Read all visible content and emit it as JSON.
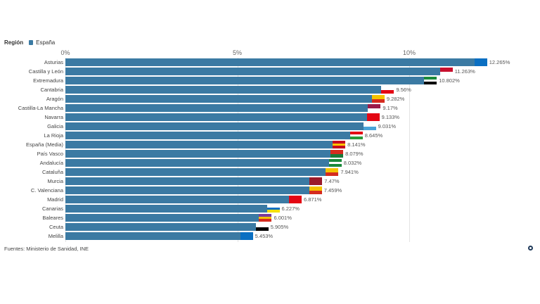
{
  "legend": {
    "title": "Región",
    "item": "España",
    "color": "#3b7aa3"
  },
  "chart_data": {
    "type": "bar",
    "orientation": "horizontal",
    "xlim": [
      0,
      12.5
    ],
    "ticks": [
      "0%",
      "5%",
      "10%"
    ],
    "tick_values": [
      0,
      5,
      10
    ],
    "categories": [
      "Asturias",
      "Castilla y León",
      "Extremadura",
      "Cantabria",
      "Aragón",
      "Castilla-La Mancha",
      "Navarra",
      "Galicia",
      "La Rioja",
      "España (Media)",
      "País Vasco",
      "Andalucía",
      "Cataluña",
      "Murcia",
      "C. Valenciana",
      "Madrid",
      "Canarias",
      "Baleares",
      "Ceuta",
      "Melilla"
    ],
    "values": [
      12.265,
      11.263,
      10.802,
      9.56,
      9.282,
      9.17,
      9.133,
      9.031,
      8.645,
      8.141,
      8.079,
      8.032,
      7.941,
      7.47,
      7.459,
      6.871,
      6.227,
      6.001,
      5.905,
      5.453
    ],
    "labels": [
      "12.265%",
      "11.263%",
      "10.802%",
      "9.56%",
      "9.282%",
      "9.17%",
      "9.133%",
      "9.031%",
      "8.645%",
      "8.141%",
      "8.079%",
      "8.032%",
      "7.941%",
      "7.47%",
      "7.459%",
      "6.871%",
      "6.227%",
      "6.001%",
      "5.905%",
      "5.453%"
    ],
    "flag_colors": [
      [
        "#0a6fc2",
        "#0a6fc2"
      ],
      [
        "#c8102e",
        "#fff"
      ],
      [
        "#1a8a3a",
        "#fff",
        "#000"
      ],
      [
        "#fff",
        "#e30613"
      ],
      [
        "#f4c300",
        "#d52b1e"
      ],
      [
        "#9b1b4a",
        "#fff"
      ],
      [
        "#e30613",
        "#e30613"
      ],
      [
        "#fff",
        "#4aa3d8"
      ],
      [
        "#e30613",
        "#fff",
        "#2a9a3a"
      ],
      [
        "#c60b1e",
        "#ffc400",
        "#c60b1e"
      ],
      [
        "#d52b1e",
        "#1a7a3a"
      ],
      [
        "#1a8a3a",
        "#fff",
        "#1a8a3a"
      ],
      [
        "#f4c300",
        "#d52b1e"
      ],
      [
        "#9b1b2a",
        "#9b1b2a"
      ],
      [
        "#f4c300",
        "#d52b1e"
      ],
      [
        "#e30613",
        "#e30613"
      ],
      [
        "#fff",
        "#0a6fc2",
        "#f4e000"
      ],
      [
        "#7a3a9a",
        "#f4c300",
        "#d52b1e"
      ],
      [
        "#fff",
        "#000"
      ],
      [
        "#0a6fc2",
        "#0a6fc2"
      ]
    ]
  },
  "footer": {
    "source": "Fuentes: Ministerio de Sanidad, INE"
  }
}
